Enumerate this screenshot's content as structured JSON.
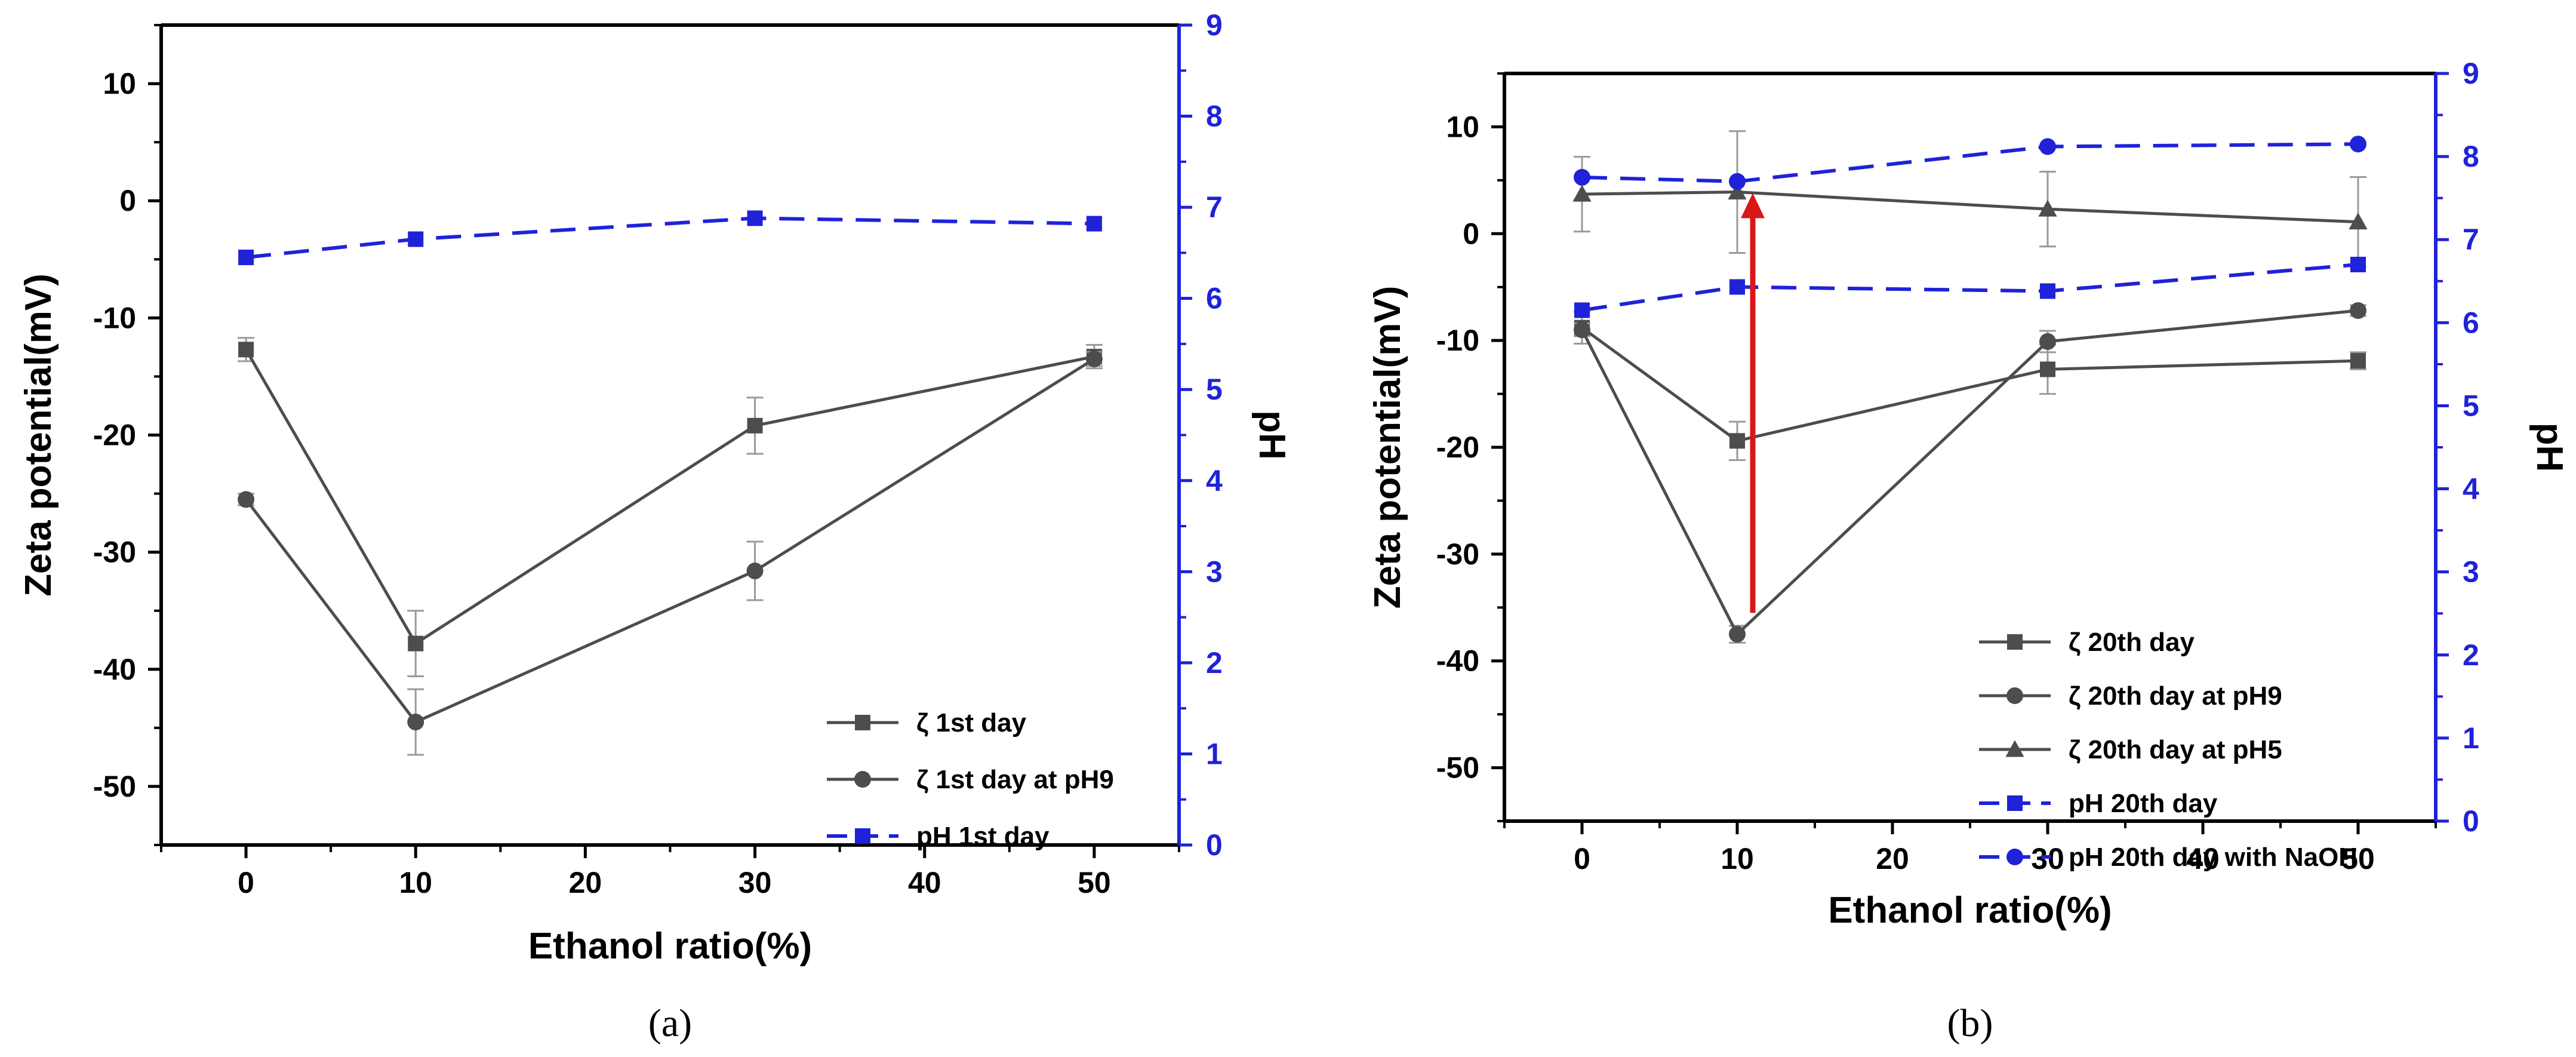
{
  "chart_data": [
    {
      "type": "line",
      "panel_label": "(a)",
      "xlabel": "Ethanol ratio(%)",
      "ylabel": "Zeta potential(mV)",
      "ylabel_right": "pH",
      "xlim": [
        -5,
        55
      ],
      "ylim": [
        -55,
        15
      ],
      "ylim_right": [
        0,
        9
      ],
      "x_ticks": [
        0,
        10,
        20,
        30,
        40,
        50
      ],
      "y_ticks": [
        10,
        0,
        -10,
        -20,
        -30,
        -40,
        -50
      ],
      "y_ticks_right": [
        0,
        1,
        2,
        3,
        4,
        5,
        6,
        7,
        8,
        9
      ],
      "colors": {
        "zeta": "#4d4d4d",
        "ph": "#1f22d8",
        "error": "#9a9a9a"
      },
      "legend_position": "bottom-right",
      "series": [
        {
          "name": "ζ 1st day",
          "axis": "left",
          "marker": "square",
          "dash": "solid",
          "x": [
            0,
            10,
            30,
            50
          ],
          "y": [
            -12.7,
            -37.8,
            -19.2,
            -13.3
          ],
          "err": [
            1.0,
            2.8,
            2.4,
            1.0
          ]
        },
        {
          "name": "ζ 1st day at pH9",
          "axis": "left",
          "marker": "circle",
          "dash": "solid",
          "x": [
            0,
            10,
            30,
            50
          ],
          "y": [
            -25.5,
            -44.5,
            -31.6,
            -13.5
          ],
          "err": [
            0.5,
            2.8,
            2.5,
            0.6
          ]
        },
        {
          "name": "pH 1st day",
          "axis": "right",
          "marker": "square",
          "dash": "dashed",
          "x": [
            0,
            10,
            30,
            50
          ],
          "y": [
            6.45,
            6.65,
            6.88,
            6.82
          ],
          "err": null
        }
      ]
    },
    {
      "type": "line",
      "panel_label": "(b)",
      "xlabel": "Ethanol ratio(%)",
      "ylabel": "Zeta potential(mV)",
      "ylabel_right": "pH",
      "xlim": [
        -5,
        55
      ],
      "ylim": [
        -55,
        15
      ],
      "ylim_right": [
        0,
        9
      ],
      "x_ticks": [
        0,
        10,
        20,
        30,
        40,
        50
      ],
      "y_ticks": [
        10,
        0,
        -10,
        -20,
        -30,
        -40,
        -50
      ],
      "y_ticks_right": [
        0,
        1,
        2,
        3,
        4,
        5,
        6,
        7,
        8,
        9
      ],
      "colors": {
        "zeta": "#4d4d4d",
        "ph": "#1f22d8",
        "error": "#9a9a9a",
        "arrow": "#d81818"
      },
      "legend_position": "bottom-right",
      "annotation": {
        "type": "arrow",
        "x": 11,
        "from_y": -35.5,
        "to_y": 3.8
      },
      "series": [
        {
          "name": "ζ 20th day",
          "axis": "left",
          "marker": "square",
          "dash": "solid",
          "x": [
            0,
            10,
            30,
            50
          ],
          "y": [
            -8.8,
            -19.4,
            -12.7,
            -11.9
          ],
          "err": [
            1.5,
            1.8,
            2.3,
            0.8
          ]
        },
        {
          "name": "ζ 20th day at pH9",
          "axis": "left",
          "marker": "circle",
          "dash": "solid",
          "x": [
            0,
            10,
            30,
            50
          ],
          "y": [
            -9.0,
            -37.5,
            -10.1,
            -7.2
          ],
          "err": [
            0.6,
            0.8,
            1.0,
            0.5
          ]
        },
        {
          "name": "ζ 20th day at pH5",
          "axis": "left",
          "marker": "triangle",
          "dash": "solid",
          "x": [
            0,
            10,
            30,
            50
          ],
          "y": [
            3.7,
            3.9,
            2.3,
            1.1
          ],
          "err": [
            3.5,
            5.7,
            3.5,
            4.2
          ]
        },
        {
          "name": "pH 20th day",
          "axis": "right",
          "marker": "square",
          "dash": "dashed",
          "x": [
            0,
            10,
            30,
            50
          ],
          "y": [
            6.15,
            6.43,
            6.38,
            6.7
          ],
          "err": null
        },
        {
          "name": "pH 20th day with NaOH",
          "axis": "right",
          "marker": "circle",
          "dash": "dashed",
          "x": [
            0,
            10,
            30,
            50
          ],
          "y": [
            7.75,
            7.7,
            8.12,
            8.15
          ],
          "err": null
        }
      ]
    }
  ]
}
